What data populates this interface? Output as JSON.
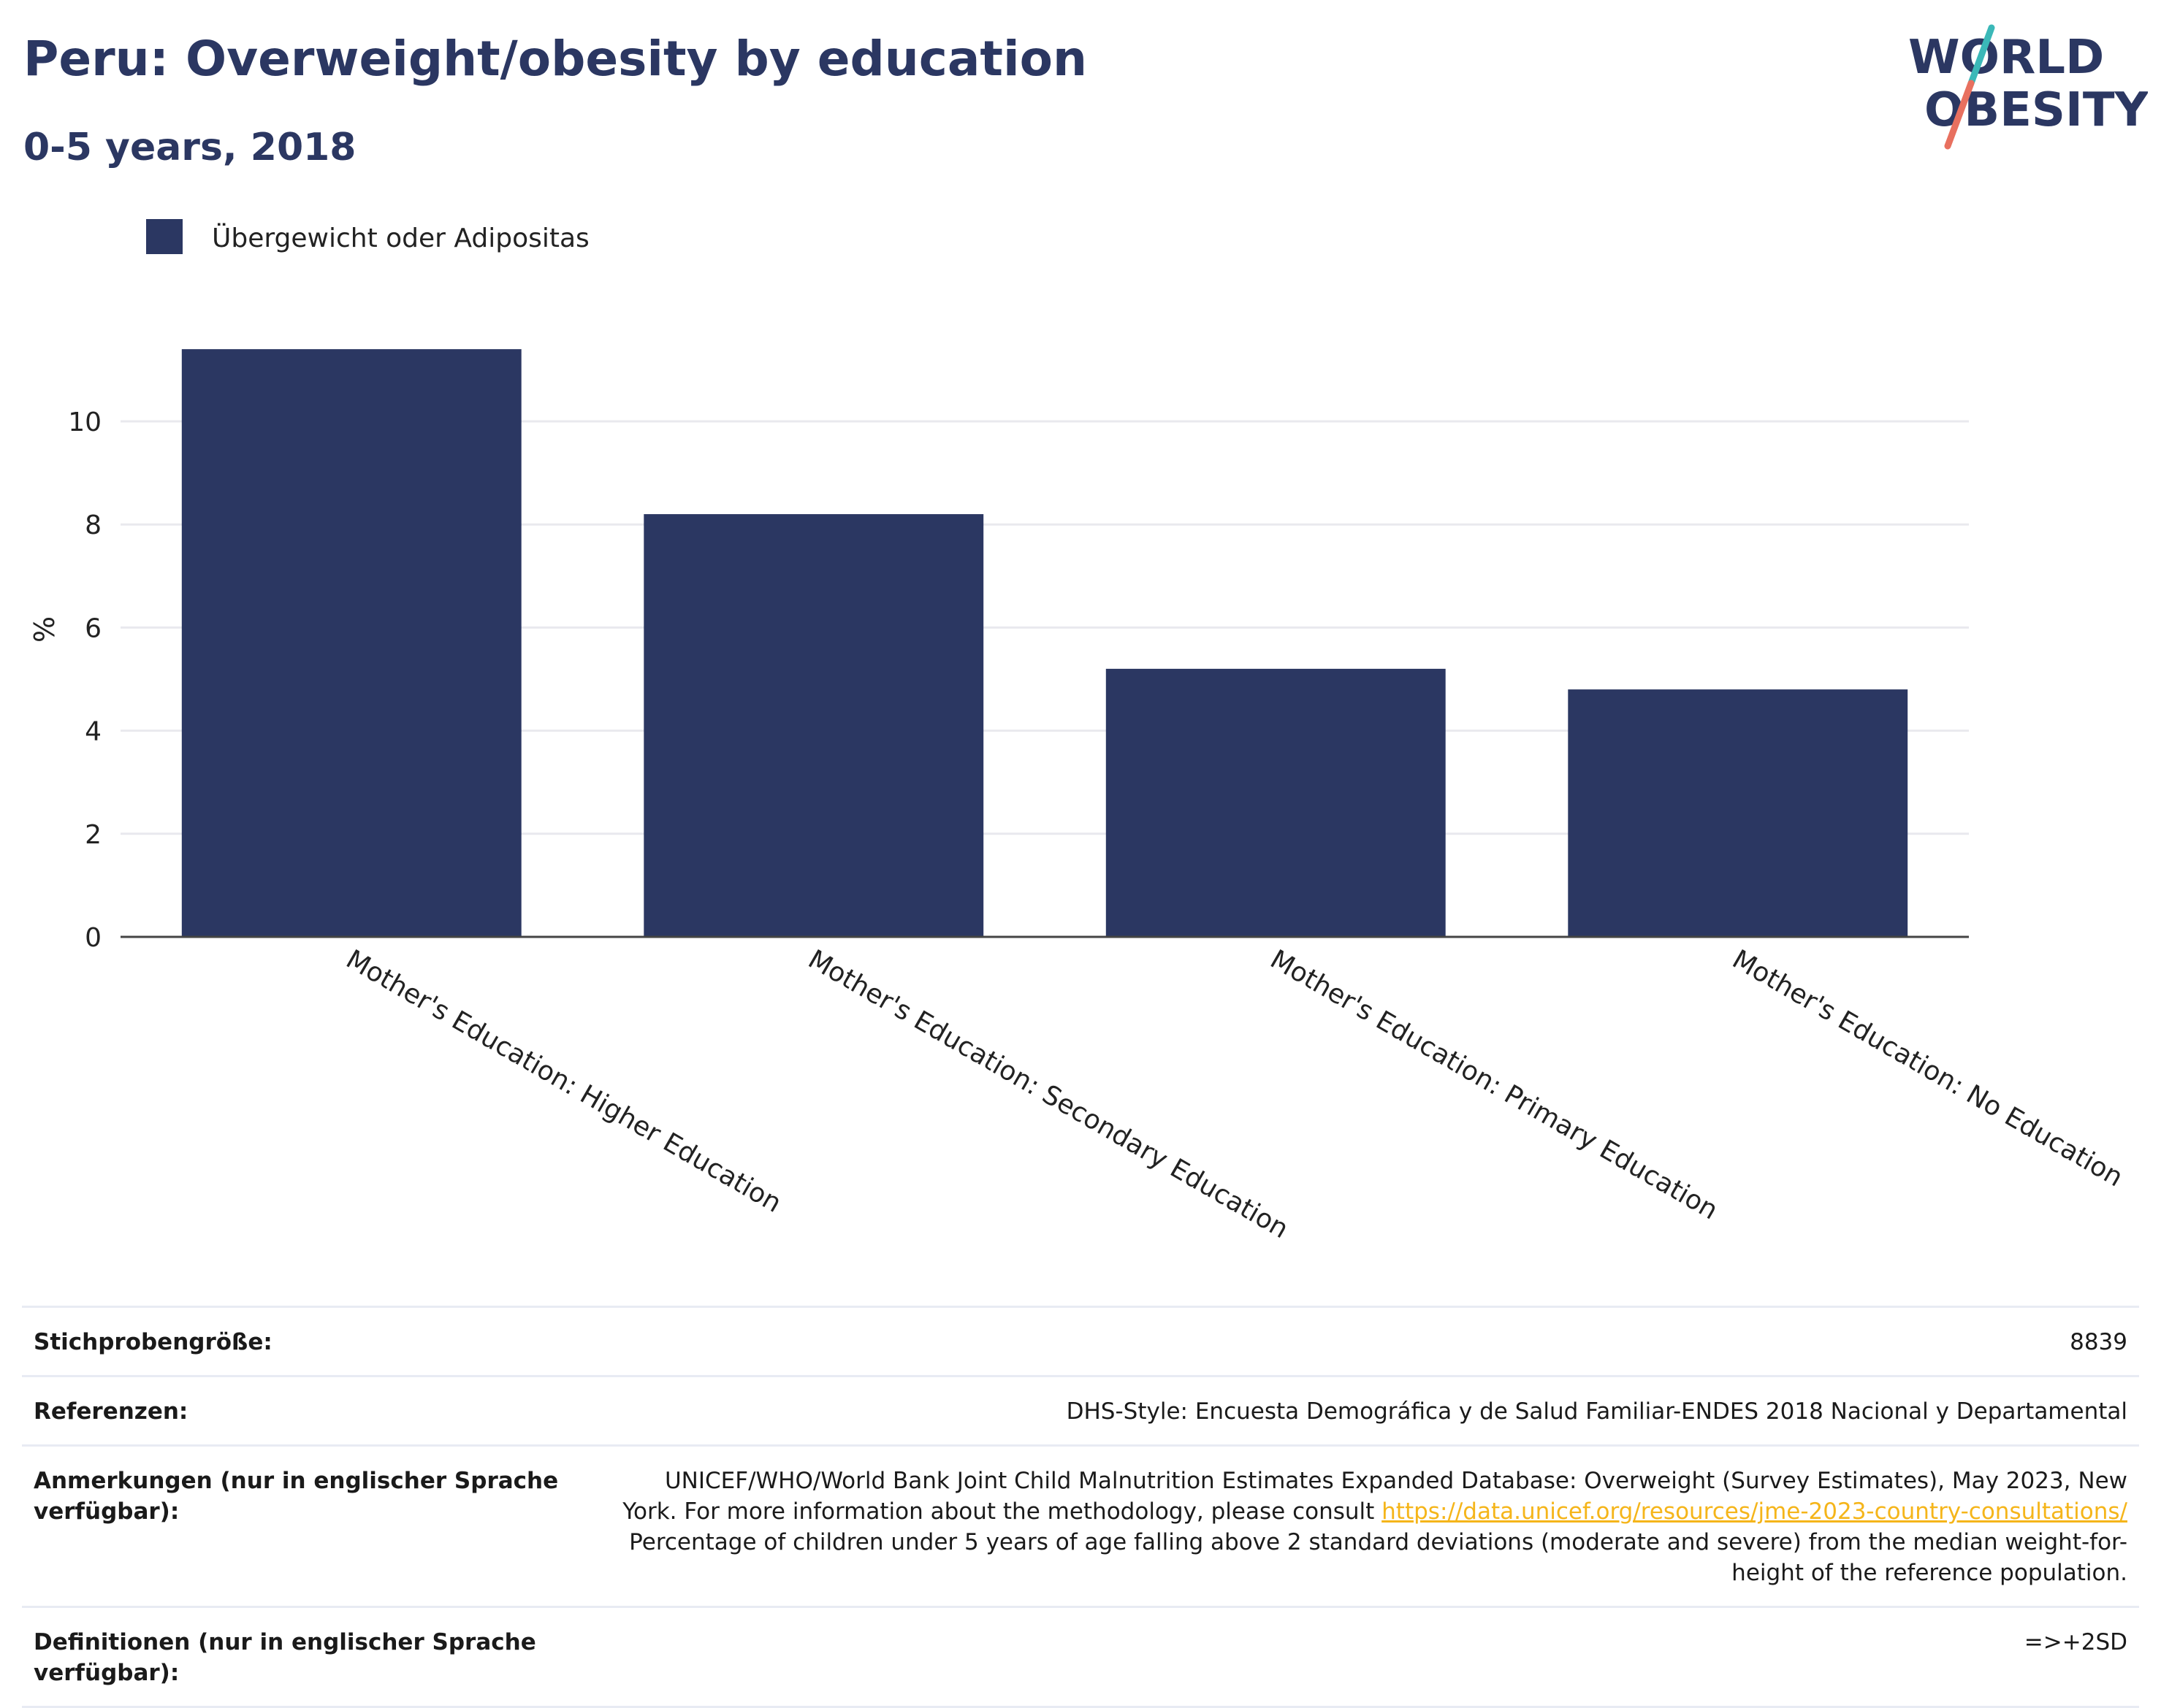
{
  "header": {
    "title": "Peru: Overweight/obesity by education",
    "subtitle": "0-5 years, 2018",
    "logo_line1": "WORLD",
    "logo_line2": "OBESITY"
  },
  "colors": {
    "bar": "#2b3762",
    "title": "#2b3762",
    "grid": "#e9e9ee",
    "axis": "#444444",
    "link": "#f5b51a",
    "logo_teal": "#3bb8b8",
    "logo_coral": "#e8705f"
  },
  "chart_data": {
    "type": "bar",
    "categories": [
      "Mother's Education: Higher Education",
      "Mother's Education: Secondary Education",
      "Mother's Education: Primary Education",
      "Mother's Education: No Education"
    ],
    "series": [
      {
        "name": "Übergewicht oder Adipositas",
        "values": [
          11.4,
          8.2,
          5.2,
          4.8
        ]
      }
    ],
    "ylabel": "%",
    "yticks": [
      0,
      2,
      4,
      6,
      8,
      10
    ],
    "ylim": [
      0,
      12
    ],
    "grid": true,
    "legend": "top-left"
  },
  "meta": {
    "sample_label": "Stichprobengröße:",
    "sample_value": "8839",
    "references_label": "Referenzen:",
    "references_value": "DHS-Style: Encuesta Demográfica y de Salud Familiar-ENDES 2018 Nacional y Departamental",
    "notes_label": "Anmerkungen (nur in englischer Sprache verfügbar):",
    "notes_text1": "UNICEF/WHO/World Bank Joint Child Malnutrition Estimates Expanded Database: Overweight (Survey Estimates), May 2023, New York. For more information about the methodology, please consult",
    "notes_link": "https://data.unicef.org/resources/jme-2023-country-consultations/",
    "notes_text2": "Percentage of children under 5 years of age falling above 2 standard deviations (moderate and severe) from the median weight-for-height of the reference population.",
    "definitions_label": "Definitionen (nur in englischer Sprache verfügbar):",
    "definitions_value": "=>+2SD"
  }
}
